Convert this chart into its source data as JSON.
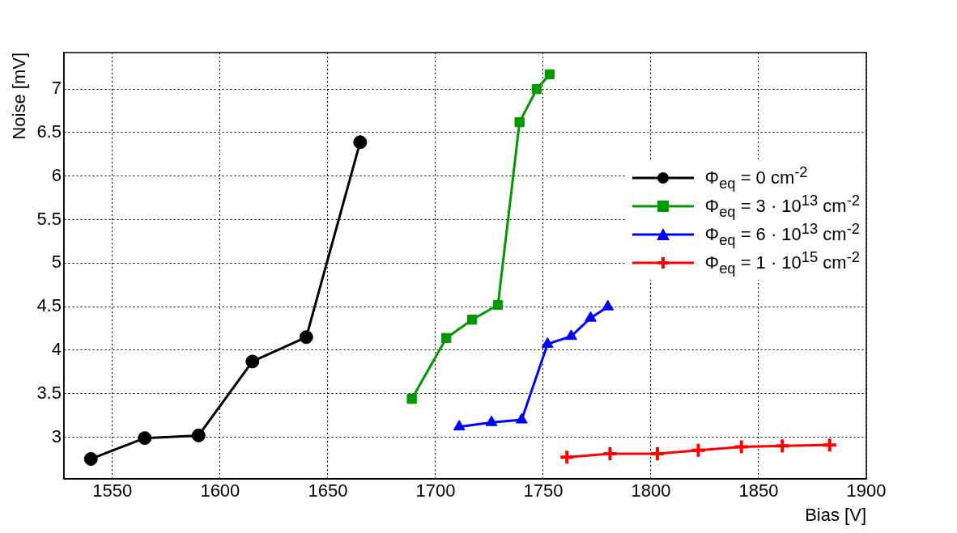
{
  "chart_data": {
    "type": "line",
    "xlabel": "Bias [V]",
    "ylabel": "Noise [mV]",
    "xlim": [
      1527.5,
      1900
    ],
    "xticks": [
      1550,
      1600,
      1650,
      1700,
      1750,
      1800,
      1850,
      1900
    ],
    "ylim": [
      2.52,
      7.42
    ],
    "yticks": [
      3,
      3.5,
      4,
      4.5,
      5,
      5.5,
      6,
      6.5,
      7
    ],
    "grid": true,
    "legend": "right",
    "line_style": "solid",
    "series": [
      {
        "name": "Φ$_{eq}$ = 0 cm$^{-2}$",
        "color": "#000000",
        "marker": "circle",
        "x": [
          1540,
          1565,
          1590,
          1615,
          1640,
          1665
        ],
        "values": [
          2.75,
          2.99,
          3.02,
          3.87,
          4.15,
          6.39
        ]
      },
      {
        "name": "Φ$_{eq}$ = 3 · 10$^{13}$ cm$^{-2}$",
        "color": "#009900",
        "marker": "square",
        "x": [
          1689,
          1705,
          1717,
          1729,
          1739,
          1747,
          1753
        ],
        "values": [
          3.44,
          4.14,
          4.35,
          4.52,
          6.62,
          7.0,
          7.17
        ]
      },
      {
        "name": "Φ$_{eq}$ = 6 · 10$^{13}$ cm$^{-2}$",
        "color": "#0000ff",
        "marker": "triangle",
        "x": [
          1711,
          1726,
          1740,
          1752,
          1763,
          1772,
          1780
        ],
        "values": [
          3.12,
          3.17,
          3.2,
          4.07,
          4.16,
          4.37,
          4.5
        ]
      },
      {
        "name": "Φ$_{eq}$ = 1 · 10$^{15}$ cm$^{-2}$",
        "color": "#ff0000",
        "marker": "cross",
        "x": [
          1761,
          1781,
          1803,
          1822,
          1842,
          1861,
          1883
        ],
        "values": [
          2.77,
          2.81,
          2.81,
          2.85,
          2.89,
          2.9,
          2.91
        ]
      }
    ]
  }
}
